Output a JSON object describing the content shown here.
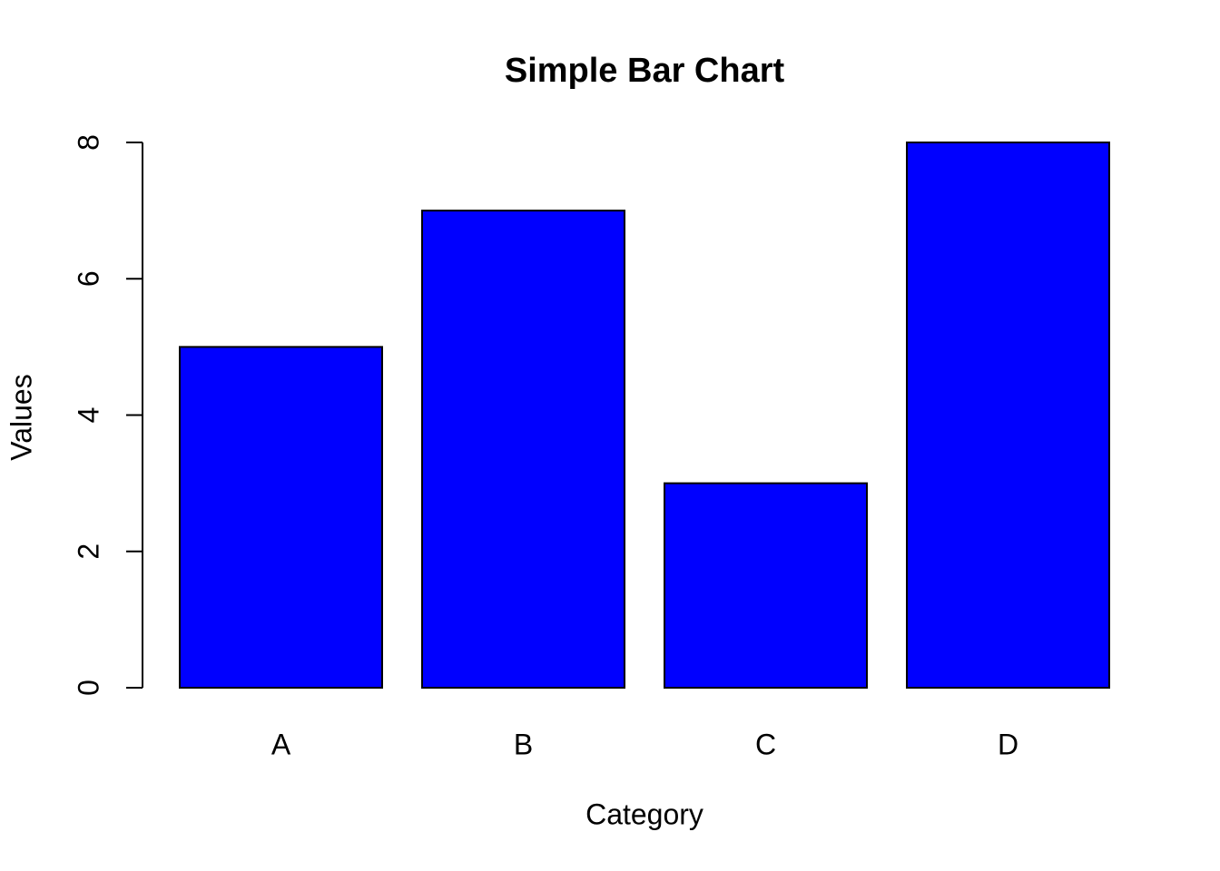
{
  "chart_data": {
    "type": "bar",
    "title": "Simple Bar Chart",
    "xlabel": "Category",
    "ylabel": "Values",
    "categories": [
      "A",
      "B",
      "C",
      "D"
    ],
    "values": [
      5,
      7,
      3,
      8
    ],
    "ylim": [
      0,
      8
    ],
    "yticks": [
      "0",
      "2",
      "4",
      "6",
      "8"
    ],
    "grid": false,
    "legend": "none",
    "bar_color": "#0000ff",
    "outline_color": "#000000"
  }
}
